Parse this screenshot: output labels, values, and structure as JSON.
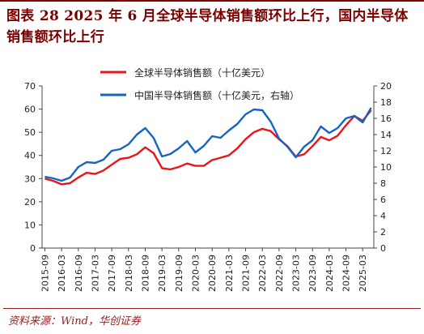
{
  "header": {
    "title": "图表 28 2025 年 6 月全球半导体销售额环比上行，国内半导体销售额环比上行"
  },
  "footer": {
    "source": "资料来源：Wind，华创证券"
  },
  "colors": {
    "global": "#e8151b",
    "china": "#1565c0",
    "title": "#7a0000",
    "rule": "#9a1b1b"
  },
  "chart_data": {
    "type": "line",
    "title": "",
    "xlabel": "",
    "ylabel": "",
    "ylim_left": [
      0,
      70
    ],
    "ylim_right": [
      0,
      20
    ],
    "yticks_left": [
      0,
      10,
      20,
      30,
      40,
      50,
      60,
      70
    ],
    "yticks_right": [
      0,
      2,
      4,
      6,
      8,
      10,
      12,
      14,
      16,
      18,
      20
    ],
    "x_tick_labels": [
      "2015-09",
      "2016-03",
      "2016-09",
      "2017-03",
      "2017-09",
      "2018-03",
      "2018-09",
      "2019-03",
      "2019-09",
      "2020-03",
      "2020-09",
      "2021-03",
      "2021-09",
      "2022-03",
      "2022-09",
      "2023-03",
      "2023-09",
      "2024-03",
      "2024-09",
      "2025-03"
    ],
    "grid": false,
    "legend_position": "top",
    "series": [
      {
        "name": "全球半导体销售额（十亿美元）",
        "axis": "left",
        "color": "#e8151b",
        "points": [
          [
            "2015-09",
            30.0
          ],
          [
            "2015-12",
            29.0
          ],
          [
            "2016-03",
            27.5
          ],
          [
            "2016-06",
            28.0
          ],
          [
            "2016-09",
            30.5
          ],
          [
            "2016-12",
            32.5
          ],
          [
            "2017-03",
            32.0
          ],
          [
            "2017-06",
            33.5
          ],
          [
            "2017-09",
            36.0
          ],
          [
            "2017-12",
            38.5
          ],
          [
            "2018-03",
            39.0
          ],
          [
            "2018-06",
            40.5
          ],
          [
            "2018-09",
            43.5
          ],
          [
            "2018-12",
            41.0
          ],
          [
            "2019-03",
            34.5
          ],
          [
            "2019-06",
            34.0
          ],
          [
            "2019-09",
            35.0
          ],
          [
            "2019-12",
            36.5
          ],
          [
            "2020-03",
            35.5
          ],
          [
            "2020-06",
            35.5
          ],
          [
            "2020-09",
            38.0
          ],
          [
            "2020-12",
            39.0
          ],
          [
            "2021-03",
            40.0
          ],
          [
            "2021-06",
            43.0
          ],
          [
            "2021-09",
            47.0
          ],
          [
            "2021-12",
            50.0
          ],
          [
            "2022-03",
            51.5
          ],
          [
            "2022-06",
            50.5
          ],
          [
            "2022-09",
            47.0
          ],
          [
            "2022-12",
            44.0
          ],
          [
            "2023-03",
            39.5
          ],
          [
            "2023-06",
            40.5
          ],
          [
            "2023-09",
            44.0
          ],
          [
            "2023-12",
            48.0
          ],
          [
            "2024-03",
            46.5
          ],
          [
            "2024-06",
            48.5
          ],
          [
            "2024-09",
            53.0
          ],
          [
            "2024-12",
            57.0
          ],
          [
            "2025-03",
            55.0
          ],
          [
            "2025-06",
            59.5
          ]
        ]
      },
      {
        "name": "中国半导体销售额（十亿美元，右轴）",
        "axis": "right",
        "color": "#1565c0",
        "points": [
          [
            "2015-09",
            8.8
          ],
          [
            "2015-12",
            8.6
          ],
          [
            "2016-03",
            8.3
          ],
          [
            "2016-06",
            8.7
          ],
          [
            "2016-09",
            10.0
          ],
          [
            "2016-12",
            10.6
          ],
          [
            "2017-03",
            10.5
          ],
          [
            "2017-06",
            10.9
          ],
          [
            "2017-09",
            12.0
          ],
          [
            "2017-12",
            12.2
          ],
          [
            "2018-03",
            12.8
          ],
          [
            "2018-06",
            14.0
          ],
          [
            "2018-09",
            14.8
          ],
          [
            "2018-12",
            13.6
          ],
          [
            "2019-03",
            11.3
          ],
          [
            "2019-06",
            11.6
          ],
          [
            "2019-09",
            12.3
          ],
          [
            "2019-12",
            13.2
          ],
          [
            "2020-03",
            11.8
          ],
          [
            "2020-06",
            12.6
          ],
          [
            "2020-09",
            13.8
          ],
          [
            "2020-12",
            13.6
          ],
          [
            "2021-03",
            14.5
          ],
          [
            "2021-06",
            15.3
          ],
          [
            "2021-09",
            16.5
          ],
          [
            "2021-12",
            17.1
          ],
          [
            "2022-03",
            17.0
          ],
          [
            "2022-06",
            15.6
          ],
          [
            "2022-09",
            13.5
          ],
          [
            "2022-12",
            12.5
          ],
          [
            "2023-03",
            11.2
          ],
          [
            "2023-06",
            12.5
          ],
          [
            "2023-09",
            13.3
          ],
          [
            "2023-12",
            15.0
          ],
          [
            "2024-03",
            14.2
          ],
          [
            "2024-06",
            14.8
          ],
          [
            "2024-09",
            16.0
          ],
          [
            "2024-12",
            16.3
          ],
          [
            "2025-03",
            15.5
          ],
          [
            "2025-06",
            17.3
          ]
        ]
      }
    ]
  }
}
